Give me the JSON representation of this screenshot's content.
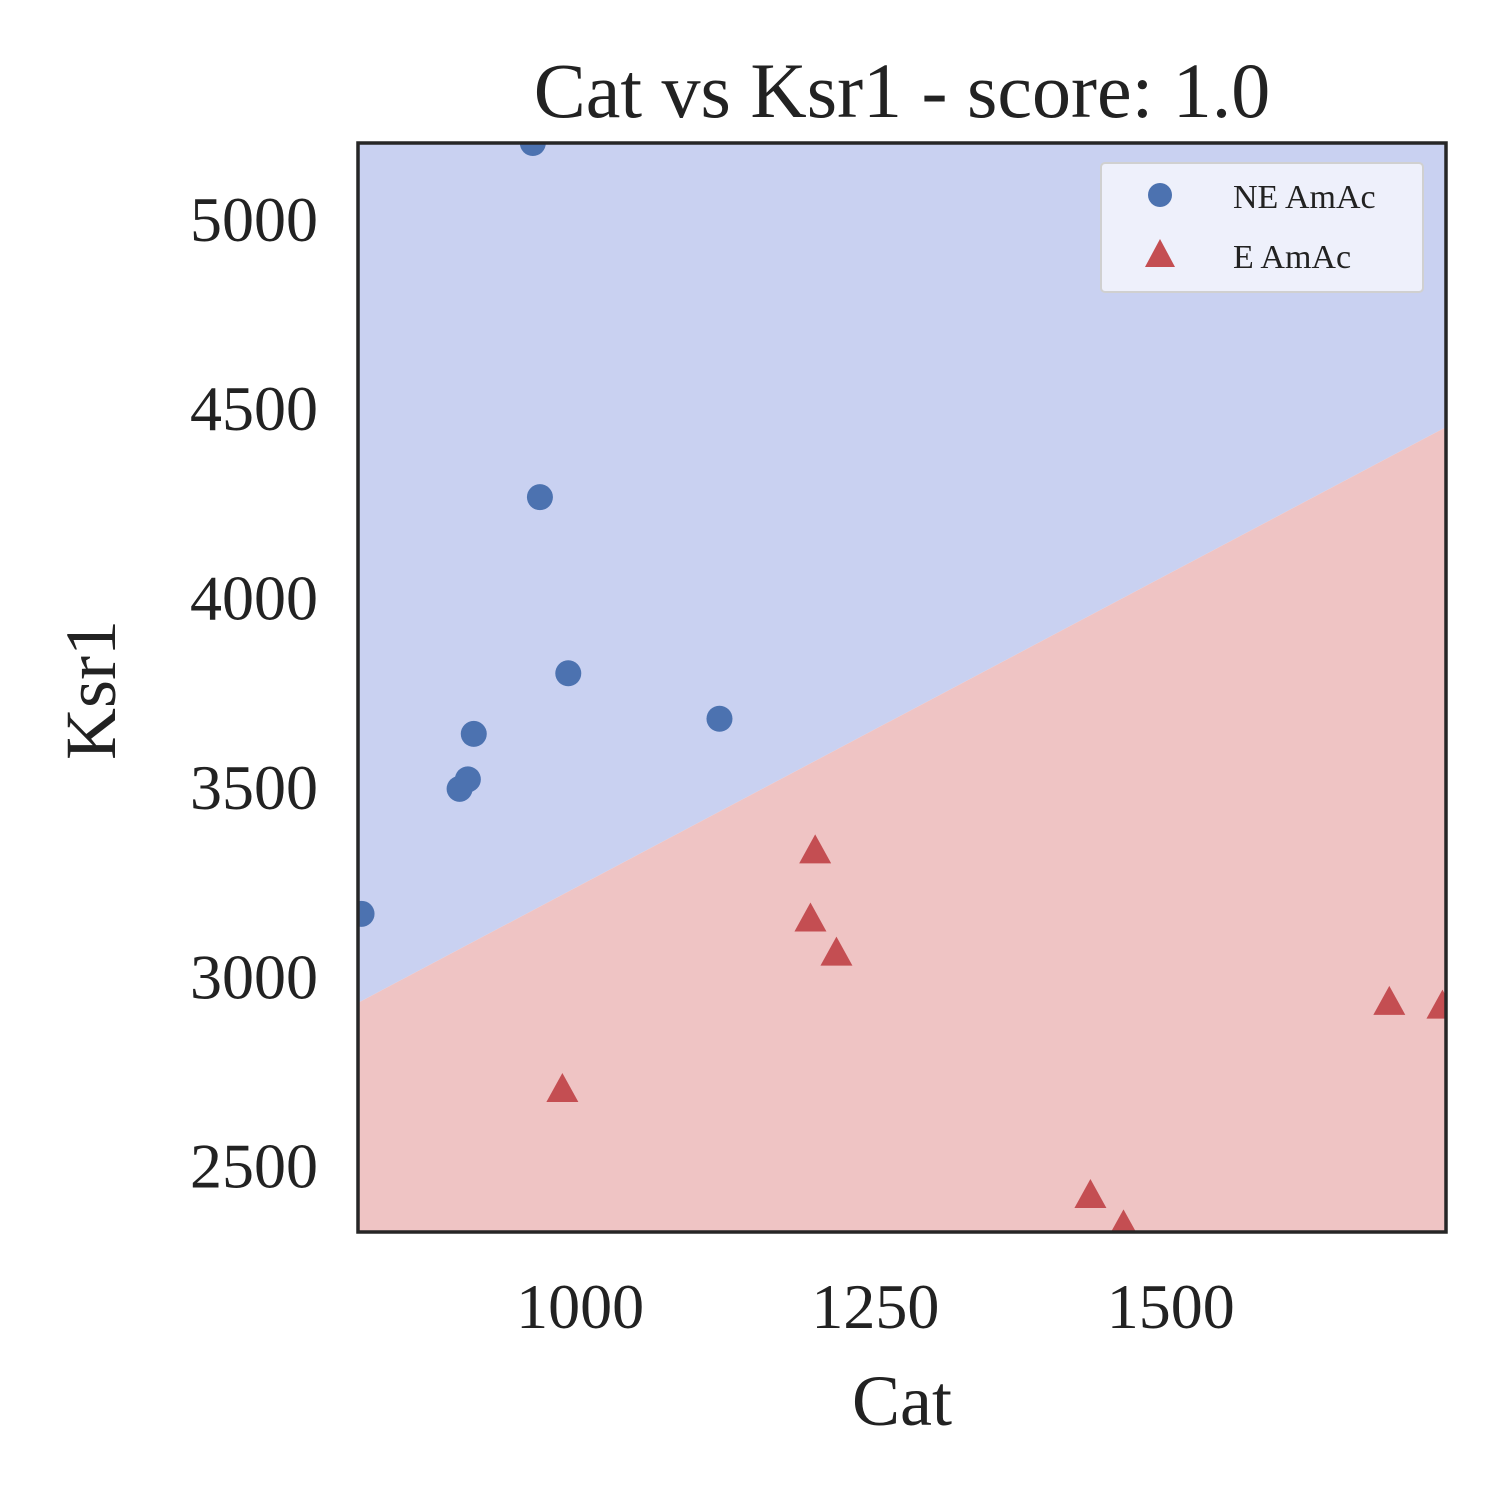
{
  "chart_data": {
    "type": "scatter",
    "title": "Cat vs Ksr1 - score: 1.0",
    "xlabel": "Cat",
    "ylabel": "Ksr1",
    "xlim": [
      812,
      1733
    ],
    "ylim": [
      2325,
      5200
    ],
    "x_ticks": [
      1000,
      1250,
      1500
    ],
    "y_ticks": [
      2500,
      3000,
      3500,
      4000,
      4500,
      5000
    ],
    "grid": false,
    "legend_position": "top-right",
    "decision_boundary": {
      "points": [
        [
          812,
          2930
        ],
        [
          1733,
          4450
        ]
      ],
      "region_above": "NE AmAc",
      "region_below": "E AmAc"
    },
    "series": [
      {
        "name": "NE AmAc",
        "marker": "circle",
        "color": "#4c72b0",
        "region_color": "#c9d1f1",
        "points": [
          [
            815,
            3165
          ],
          [
            898,
            3495
          ],
          [
            905,
            3520
          ],
          [
            910,
            3640
          ],
          [
            960,
            5200
          ],
          [
            966,
            4265
          ],
          [
            990,
            3800
          ],
          [
            1118,
            3680
          ]
        ]
      },
      {
        "name": "E AmAc",
        "marker": "triangle",
        "color": "#c44e52",
        "region_color": "#efc4c4",
        "points": [
          [
            985,
            2700
          ],
          [
            1195,
            3150
          ],
          [
            1199,
            3330
          ],
          [
            1217,
            3060
          ],
          [
            1432,
            2420
          ],
          [
            1460,
            2340
          ],
          [
            1685,
            2930
          ],
          [
            1730,
            2920
          ]
        ]
      }
    ]
  }
}
